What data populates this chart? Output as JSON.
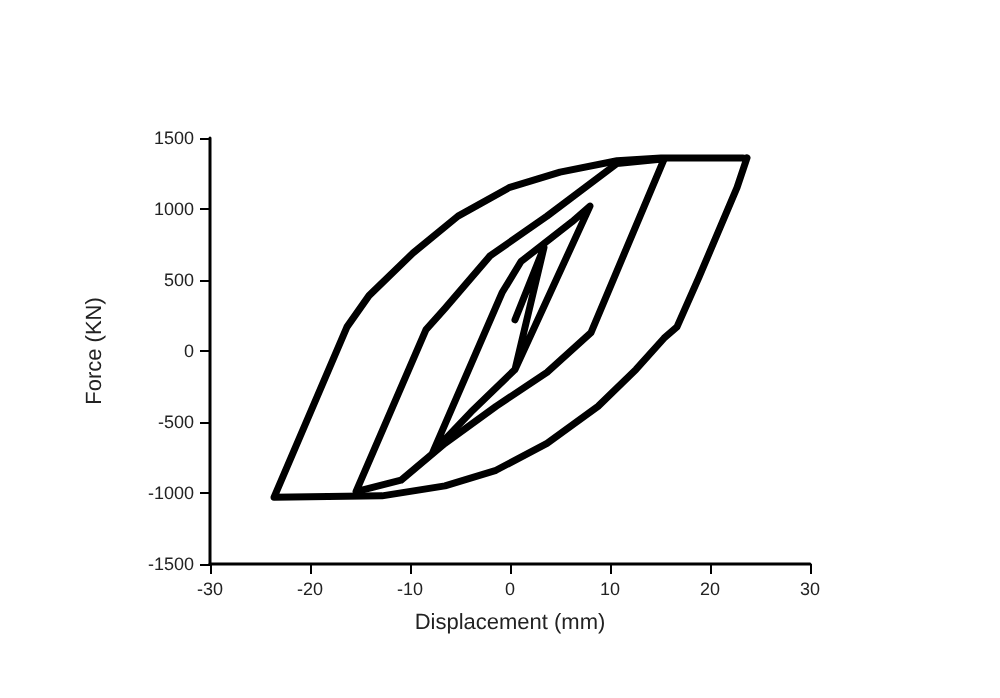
{
  "chart_data": {
    "type": "line",
    "xlabel": "Displacement (mm)",
    "ylabel": "Force (KN)",
    "xlim": [
      -30,
      30
    ],
    "xticks": [
      -30,
      -20,
      -10,
      0,
      10,
      20,
      30
    ],
    "ylim": [
      -1500,
      1500
    ],
    "yticks": [
      -1500,
      -1000,
      -500,
      0,
      500,
      1000,
      1500
    ],
    "grid": false,
    "marker": "none",
    "line_style": "solid",
    "series": [
      {
        "color": "#000000",
        "x": [
          0.5,
          3.4,
          0.5,
          -3.9,
          -7.7,
          -0.8,
          1.1,
          6.2,
          8,
          0.5
        ],
        "values": [
          220,
          730,
          -130,
          -430,
          -710,
          410,
          630,
          910,
          1020,
          -130
        ]
      },
      {
        "color": "#000000",
        "x": [
          15.4,
          8.1,
          3.7,
          -1.4,
          -6.5,
          -10.9,
          -15.4,
          -8.4,
          -6.5,
          -2,
          3.7,
          10.7,
          15
        ],
        "values": [
          1350,
          130,
          -150,
          -390,
          -650,
          -910,
          -990,
          150,
          300,
          670,
          950,
          1320,
          1350
        ]
      },
      {
        "color": "#000000",
        "x": [
          23.7,
          22.7,
          18.9,
          16.7,
          15.4,
          12.6,
          8.8,
          3.7,
          -1.4,
          -6.5,
          -12.8,
          -23.6,
          -16.3,
          -14.1,
          -9.7,
          -5.2,
          -0.1,
          5,
          10.7,
          15.1,
          23.3
        ],
        "values": [
          1360,
          1150,
          520,
          170,
          90,
          -130,
          -390,
          -650,
          -840,
          -950,
          -1020,
          -1030,
          170,
          390,
          690,
          950,
          1150,
          1260,
          1340,
          1360,
          1360
        ]
      }
    ]
  }
}
